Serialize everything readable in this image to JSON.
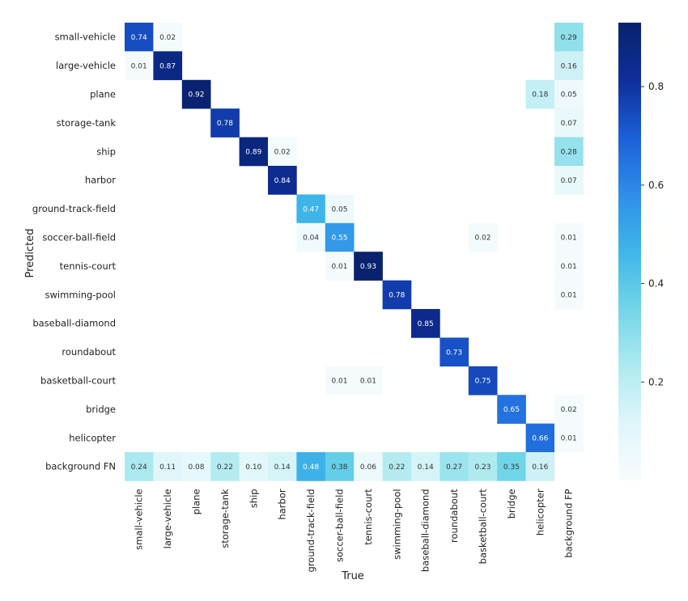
{
  "chart_data": {
    "type": "heatmap",
    "title": "",
    "xlabel": "True",
    "ylabel": "Predicted",
    "x_categories": [
      "small-vehicle",
      "large-vehicle",
      "plane",
      "storage-tank",
      "ship",
      "harbor",
      "ground-track-field",
      "soccer-ball-field",
      "tennis-court",
      "swimming-pool",
      "baseball-diamond",
      "roundabout",
      "basketball-court",
      "bridge",
      "helicopter",
      "background FP"
    ],
    "y_categories": [
      "small-vehicle",
      "large-vehicle",
      "plane",
      "storage-tank",
      "ship",
      "harbor",
      "ground-track-field",
      "soccer-ball-field",
      "tennis-court",
      "swimming-pool",
      "baseball-diamond",
      "roundabout",
      "basketball-court",
      "bridge",
      "helicopter",
      "background FN"
    ],
    "cells": [
      {
        "row": 0,
        "col": 0,
        "value": 0.74,
        "label": "0.74"
      },
      {
        "row": 0,
        "col": 1,
        "value": 0.02,
        "label": "0.02"
      },
      {
        "row": 0,
        "col": 15,
        "value": 0.29,
        "label": "0.29"
      },
      {
        "row": 1,
        "col": 0,
        "value": 0.01,
        "label": "0.01"
      },
      {
        "row": 1,
        "col": 1,
        "value": 0.87,
        "label": "0.87"
      },
      {
        "row": 1,
        "col": 15,
        "value": 0.16,
        "label": "0.16"
      },
      {
        "row": 2,
        "col": 2,
        "value": 0.92,
        "label": "0.92"
      },
      {
        "row": 2,
        "col": 14,
        "value": 0.18,
        "label": "0.18"
      },
      {
        "row": 2,
        "col": 15,
        "value": 0.05,
        "label": "0.05"
      },
      {
        "row": 3,
        "col": 3,
        "value": 0.78,
        "label": "0.78"
      },
      {
        "row": 3,
        "col": 15,
        "value": 0.07,
        "label": "0.07"
      },
      {
        "row": 4,
        "col": 4,
        "value": 0.89,
        "label": "0.89"
      },
      {
        "row": 4,
        "col": 5,
        "value": 0.02,
        "label": "0.02"
      },
      {
        "row": 4,
        "col": 15,
        "value": 0.28,
        "label": "0.28"
      },
      {
        "row": 5,
        "col": 5,
        "value": 0.84,
        "label": "0.84"
      },
      {
        "row": 5,
        "col": 15,
        "value": 0.07,
        "label": "0.07"
      },
      {
        "row": 6,
        "col": 6,
        "value": 0.47,
        "label": "0.47"
      },
      {
        "row": 6,
        "col": 7,
        "value": 0.05,
        "label": "0.05"
      },
      {
        "row": 7,
        "col": 6,
        "value": 0.04,
        "label": "0.04"
      },
      {
        "row": 7,
        "col": 7,
        "value": 0.55,
        "label": "0.55"
      },
      {
        "row": 7,
        "col": 12,
        "value": 0.02,
        "label": "0.02"
      },
      {
        "row": 7,
        "col": 15,
        "value": 0.01,
        "label": "0.01"
      },
      {
        "row": 8,
        "col": 7,
        "value": 0.01,
        "label": "0.01"
      },
      {
        "row": 8,
        "col": 8,
        "value": 0.93,
        "label": "0.93"
      },
      {
        "row": 8,
        "col": 15,
        "value": 0.01,
        "label": "0.01"
      },
      {
        "row": 9,
        "col": 9,
        "value": 0.78,
        "label": "0.78"
      },
      {
        "row": 9,
        "col": 15,
        "value": 0.01,
        "label": "0.01"
      },
      {
        "row": 10,
        "col": 10,
        "value": 0.85,
        "label": "0.85"
      },
      {
        "row": 11,
        "col": 11,
        "value": 0.73,
        "label": "0.73"
      },
      {
        "row": 12,
        "col": 7,
        "value": 0.01,
        "label": "0.01"
      },
      {
        "row": 12,
        "col": 8,
        "value": 0.01,
        "label": "0.01"
      },
      {
        "row": 12,
        "col": 12,
        "value": 0.75,
        "label": "0.75"
      },
      {
        "row": 13,
        "col": 13,
        "value": 0.65,
        "label": "0.65"
      },
      {
        "row": 13,
        "col": 15,
        "value": 0.02,
        "label": "0.02"
      },
      {
        "row": 14,
        "col": 14,
        "value": 0.66,
        "label": "0.66"
      },
      {
        "row": 14,
        "col": 15,
        "value": 0.01,
        "label": "0.01"
      },
      {
        "row": 15,
        "col": 0,
        "value": 0.24,
        "label": "0.24"
      },
      {
        "row": 15,
        "col": 1,
        "value": 0.11,
        "label": "0.11"
      },
      {
        "row": 15,
        "col": 2,
        "value": 0.08,
        "label": "0.08"
      },
      {
        "row": 15,
        "col": 3,
        "value": 0.22,
        "label": "0.22"
      },
      {
        "row": 15,
        "col": 4,
        "value": 0.1,
        "label": "0.10"
      },
      {
        "row": 15,
        "col": 5,
        "value": 0.14,
        "label": "0.14"
      },
      {
        "row": 15,
        "col": 6,
        "value": 0.48,
        "label": "0.48"
      },
      {
        "row": 15,
        "col": 7,
        "value": 0.38,
        "label": "0.38"
      },
      {
        "row": 15,
        "col": 8,
        "value": 0.06,
        "label": "0.06"
      },
      {
        "row": 15,
        "col": 9,
        "value": 0.22,
        "label": "0.22"
      },
      {
        "row": 15,
        "col": 10,
        "value": 0.14,
        "label": "0.14"
      },
      {
        "row": 15,
        "col": 11,
        "value": 0.27,
        "label": "0.27"
      },
      {
        "row": 15,
        "col": 12,
        "value": 0.23,
        "label": "0.23"
      },
      {
        "row": 15,
        "col": 13,
        "value": 0.35,
        "label": "0.35"
      },
      {
        "row": 15,
        "col": 14,
        "value": 0.16,
        "label": "0.16"
      }
    ],
    "colorbar": {
      "range": [
        0.0,
        0.93
      ],
      "ticks": [
        0.2,
        0.4,
        0.6,
        0.8
      ],
      "tick_labels": [
        "0.2",
        "0.4",
        "0.6",
        "0.8"
      ],
      "colormap": [
        "#f7fcfd",
        "#dff6fa",
        "#aeeaf0",
        "#72d5e8",
        "#3fb6e8",
        "#2e8ee8",
        "#1b5fd8",
        "#0f2e9a",
        "#08226e"
      ]
    },
    "grid": false
  }
}
